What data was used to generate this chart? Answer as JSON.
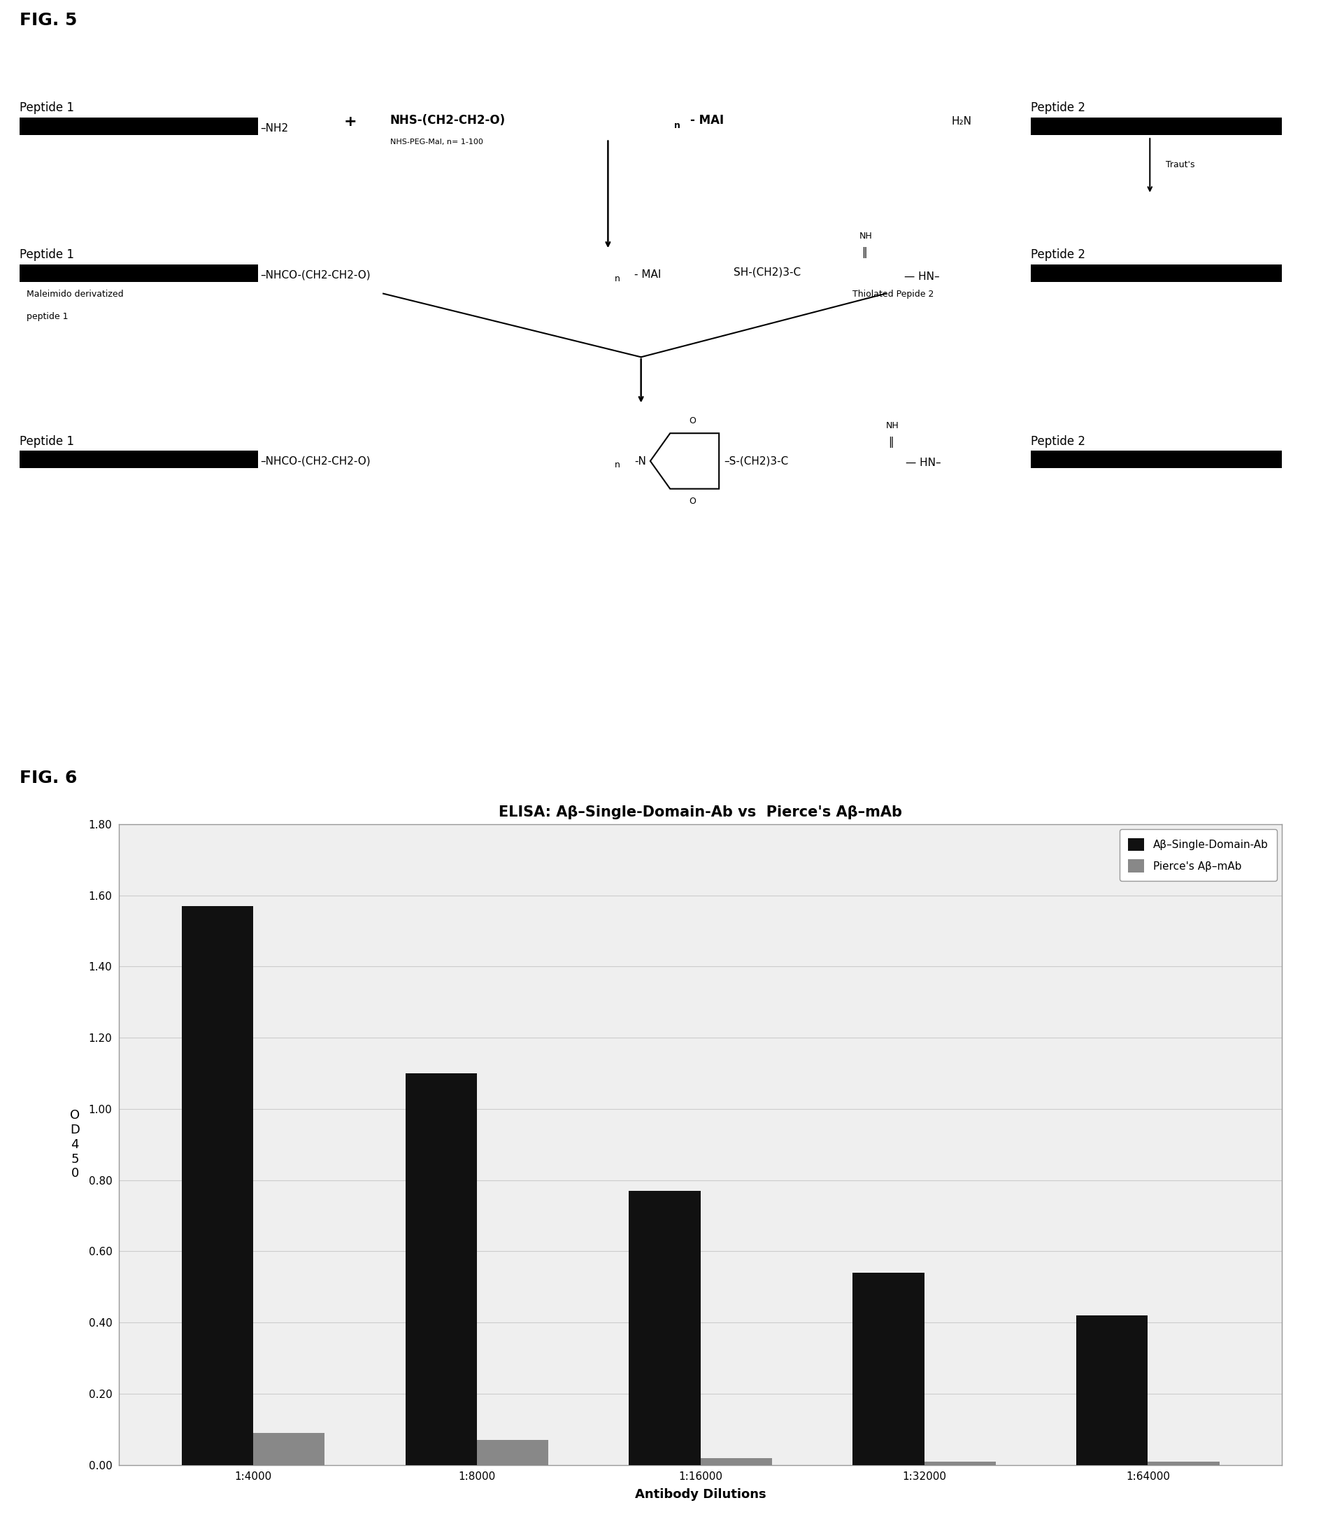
{
  "fig_title_5": "FIG. 5",
  "fig_title_6": "FIG. 6",
  "chart_title": "ELISA: Aβ–Single-Domain-Ab vs  Pierce's Aβ–mAb",
  "categories": [
    "1:4000",
    "1:8000",
    "1:16000",
    "1:32000",
    "1:64000"
  ],
  "series1_values": [
    1.57,
    1.1,
    0.77,
    0.54,
    0.42
  ],
  "series2_values": [
    0.09,
    0.07,
    0.02,
    0.01,
    0.01
  ],
  "series1_label": "Aβ–Single-Domain-Ab",
  "series2_label": "Pierce's Aβ–mAb",
  "series1_color": "#111111",
  "series2_color": "#888888",
  "xlabel": "Antibody Dilutions",
  "ylabel": "O\nD\n4\n5\n0",
  "ylim": [
    0.0,
    1.8
  ],
  "yticks": [
    0.0,
    0.2,
    0.4,
    0.6,
    0.8,
    1.0,
    1.2,
    1.4,
    1.6,
    1.8
  ],
  "background_color": "#ffffff",
  "chart_bg": "#efefef",
  "border_color": "#999999",
  "grid_color": "#cccccc",
  "title_fontsize": 15,
  "tick_fontsize": 11,
  "label_fontsize": 13,
  "bar_width": 0.32
}
